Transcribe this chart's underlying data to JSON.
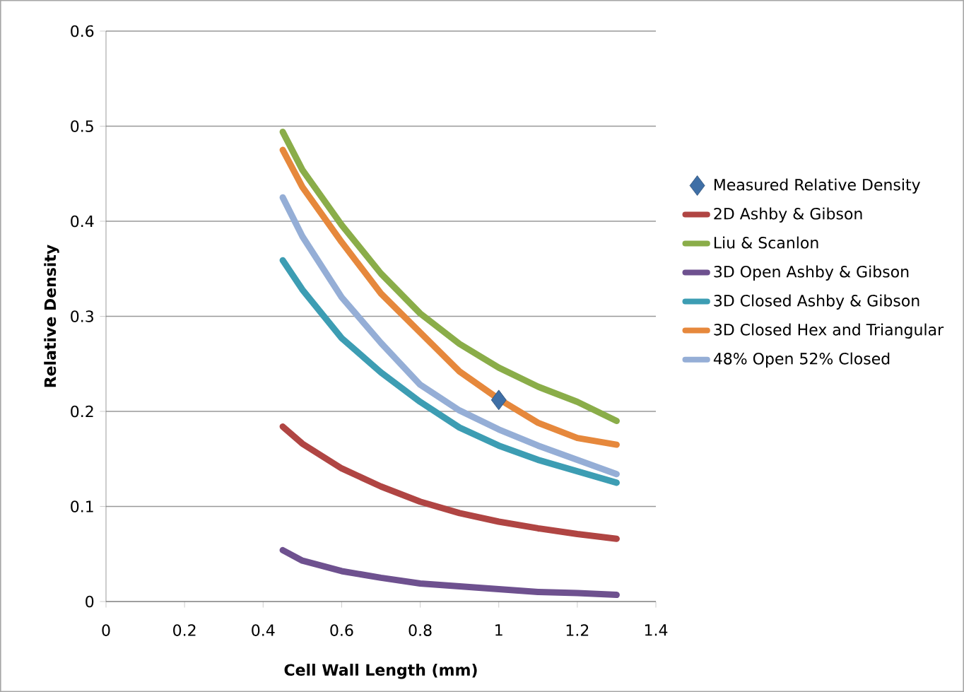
{
  "chart_data": {
    "type": "line",
    "xlabel": "Cell Wall Length (mm)",
    "ylabel": "Relative Density",
    "x": [
      0.45,
      0.5,
      0.6,
      0.7,
      0.8,
      0.9,
      1.0,
      1.1,
      1.2,
      1.3
    ],
    "series": [
      {
        "name": "Measured Relative Density",
        "type": "scatter",
        "marker": "diamond",
        "color": "#3f6fa6",
        "x": [
          1.0
        ],
        "values": [
          0.212
        ]
      },
      {
        "name": "2D Ashby & Gibson",
        "color": "#b04543",
        "values": [
          0.184,
          0.166,
          0.14,
          0.121,
          0.105,
          0.093,
          0.084,
          0.077,
          0.071,
          0.066
        ]
      },
      {
        "name": "Liu & Scanlon",
        "color": "#8aad49",
        "values": [
          0.494,
          0.454,
          0.396,
          0.345,
          0.303,
          0.271,
          0.246,
          0.226,
          0.21,
          0.19
        ]
      },
      {
        "name": "3D Open Ashby & Gibson",
        "color": "#6e518f",
        "values": [
          0.054,
          0.043,
          0.032,
          0.025,
          0.019,
          0.016,
          0.013,
          0.01,
          0.009,
          0.007
        ]
      },
      {
        "name": "3D Closed Ashby & Gibson",
        "color": "#3d9db3",
        "values": [
          0.359,
          0.328,
          0.277,
          0.241,
          0.21,
          0.183,
          0.164,
          0.149,
          0.137,
          0.125
        ]
      },
      {
        "name": "3D Closed Hex and Triangular",
        "color": "#e6883c",
        "values": [
          0.475,
          0.436,
          0.378,
          0.324,
          0.283,
          0.242,
          0.213,
          0.188,
          0.172,
          0.165
        ]
      },
      {
        "name": "48% Open 52% Closed",
        "color": "#95aed6",
        "values": [
          0.425,
          0.384,
          0.32,
          0.272,
          0.228,
          0.201,
          0.181,
          0.164,
          0.149,
          0.134
        ]
      }
    ],
    "xlim": [
      0,
      1.4
    ],
    "xticks": [
      0,
      0.2,
      0.4,
      0.6,
      0.8,
      1,
      1.2,
      1.4
    ],
    "ylim": [
      0,
      0.6
    ],
    "yticks": [
      0,
      0.1,
      0.2,
      0.3,
      0.4,
      0.5,
      0.6
    ],
    "grid": "y",
    "legend": "right"
  }
}
